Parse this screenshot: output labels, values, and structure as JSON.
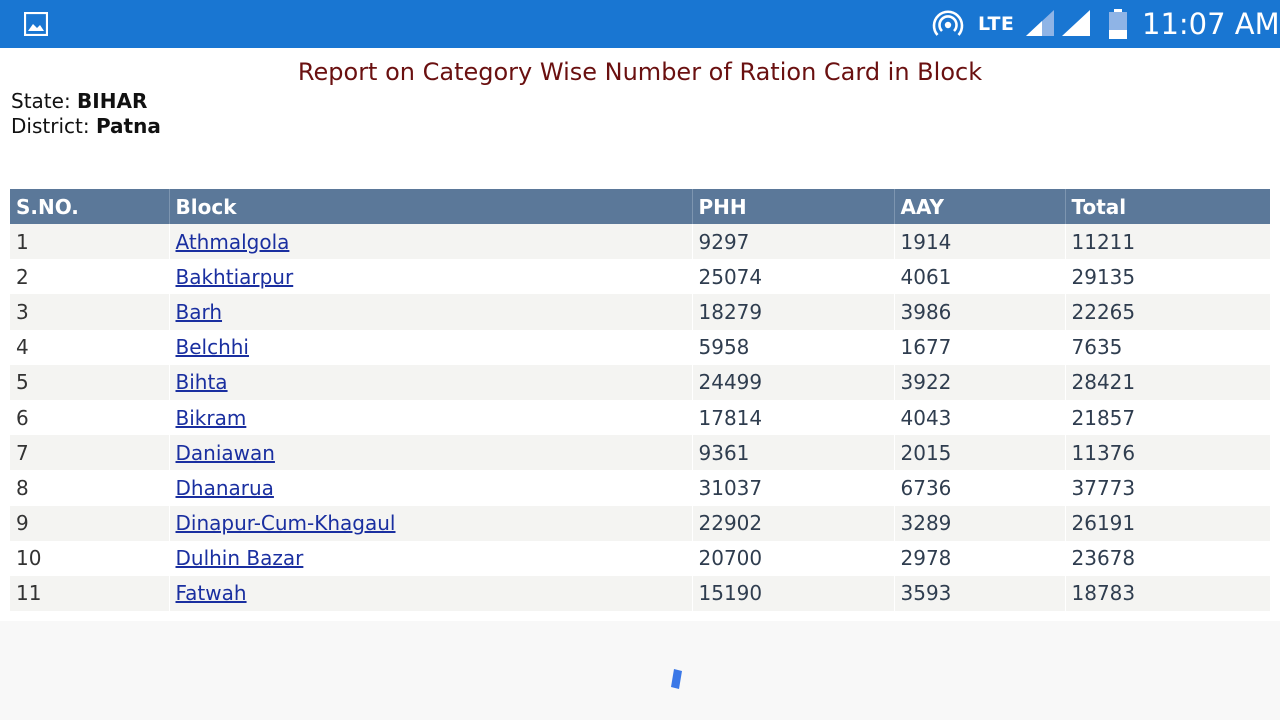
{
  "status_bar": {
    "network_type": "LTE",
    "time": "11:07 AM",
    "icons": [
      "gallery-icon",
      "hotspot-icon",
      "signal-icon",
      "signal-full-icon",
      "battery-icon"
    ],
    "color": "#1976d2"
  },
  "report": {
    "title": "Report on Category Wise Number of Ration Card in Block",
    "state_label": "State: ",
    "state_value": "BIHAR",
    "district_label": "District: ",
    "district_value": "Patna",
    "title_color": "#6a1010",
    "header_color": "#5b7899",
    "link_color": "#1a2fa0"
  },
  "table": {
    "headers": [
      "S.NO.",
      "Block",
      "PHH",
      "AAY",
      "Total"
    ],
    "rows": [
      [
        "1",
        "Athmalgola",
        "9297",
        "1914",
        "11211"
      ],
      [
        "2",
        "Bakhtiarpur",
        "25074",
        "4061",
        "29135"
      ],
      [
        "3",
        "Barh",
        "18279",
        "3986",
        "22265"
      ],
      [
        "4",
        "Belchhi",
        "5958",
        "1677",
        "7635"
      ],
      [
        "5",
        "Bihta",
        "24499",
        "3922",
        "28421"
      ],
      [
        "6",
        "Bikram",
        "17814",
        "4043",
        "21857"
      ],
      [
        "7",
        "Daniawan",
        "9361",
        "2015",
        "11376"
      ],
      [
        "8",
        "Dhanarua",
        "31037",
        "6736",
        "37773"
      ],
      [
        "9",
        "Dinapur-Cum-Khagaul",
        "22902",
        "3289",
        "26191"
      ],
      [
        "10",
        "Dulhin Bazar",
        "20700",
        "2978",
        "23678"
      ],
      [
        "11",
        "Fatwah",
        "15190",
        "3593",
        "18783"
      ]
    ]
  },
  "loading": {
    "icon": "loading-spinner-icon"
  }
}
